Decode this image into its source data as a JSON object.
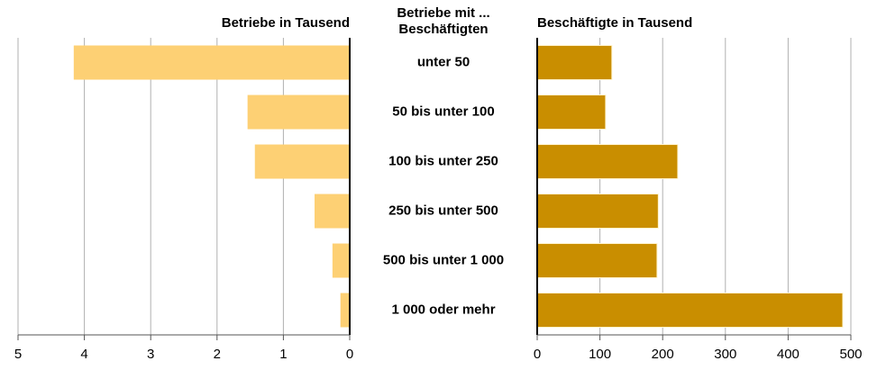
{
  "chart_data": [
    {
      "type": "bar",
      "orientation": "horizontal",
      "title": "Betriebe in Tausend",
      "category_title": "Betriebe mit ... Beschäftigten",
      "categories": [
        "unter 50",
        "50 bis unter 100",
        "100 bis unter 250",
        "250 bis unter 500",
        "500 bis unter 1 000",
        "1 000 oder mehr"
      ],
      "values": [
        4.16,
        1.54,
        1.43,
        0.53,
        0.26,
        0.14
      ],
      "color": "#fdd074",
      "xlim": [
        5,
        0
      ],
      "xticks": [
        5,
        4,
        3,
        2,
        1,
        0
      ],
      "grid": true
    },
    {
      "type": "bar",
      "orientation": "horizontal",
      "title": "Beschäftigte in Tausend",
      "values": [
        119,
        109,
        224,
        193,
        191,
        487
      ],
      "color": "#c98e00",
      "xlim": [
        0,
        500
      ],
      "xticks": [
        0,
        100,
        200,
        300,
        400,
        500
      ],
      "grid": true
    }
  ]
}
